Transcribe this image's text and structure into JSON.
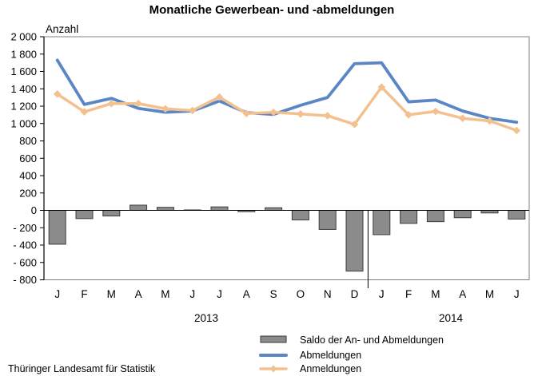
{
  "title": "Monatliche Gewerbean- und -abmeldungen",
  "y_axis_label": "Anzahl",
  "footer": "Thüringer Landesamt für Statistik",
  "colors": {
    "abmeldungen": "#5B86C5",
    "anmeldungen": "#F3C18F",
    "saldo_fill": "#8B8B8B",
    "saldo_border": "#3C3C3C",
    "frame": "#808080",
    "axis": "#000000"
  },
  "legend": [
    {
      "label": "Saldo der An- und Abmeldungen",
      "swatch": "bar"
    },
    {
      "label": "Abmeldungen",
      "swatch": "line"
    },
    {
      "label": "Anmeldungen",
      "swatch": "line-diamond"
    }
  ],
  "chart_data": {
    "type": "line+bar combo",
    "title": "Monatliche Gewerbean- und -abmeldungen",
    "ylabel": "Anzahl",
    "ylim": [
      -800,
      2000
    ],
    "ytick_step": 200,
    "grid": false,
    "legend_position": "bottom-right",
    "categories": [
      "J",
      "F",
      "M",
      "A",
      "M",
      "J",
      "J",
      "A",
      "S",
      "O",
      "N",
      "D",
      "J",
      "F",
      "M",
      "A",
      "M",
      "J"
    ],
    "year_groups": [
      {
        "label": "2013",
        "months": 12
      },
      {
        "label": "2014",
        "months": 6
      }
    ],
    "series": [
      {
        "name": "Saldo der An- und Abmeldungen",
        "type": "bar",
        "values": [
          -390,
          -95,
          -65,
          60,
          35,
          5,
          40,
          -15,
          30,
          -110,
          -220,
          -700,
          -280,
          -150,
          -130,
          -85,
          -30,
          -100
        ]
      },
      {
        "name": "Abmeldungen",
        "type": "line",
        "values": [
          1730,
          1220,
          1290,
          1175,
          1130,
          1145,
          1260,
          1125,
          1105,
          1210,
          1300,
          1690,
          1700,
          1250,
          1270,
          1145,
          1060,
          1015
        ]
      },
      {
        "name": "Anmeldungen",
        "type": "line-diamond",
        "values": [
          1340,
          1135,
          1230,
          1230,
          1170,
          1150,
          1305,
          1115,
          1130,
          1110,
          1090,
          990,
          1420,
          1100,
          1140,
          1060,
          1030,
          920
        ]
      }
    ]
  }
}
